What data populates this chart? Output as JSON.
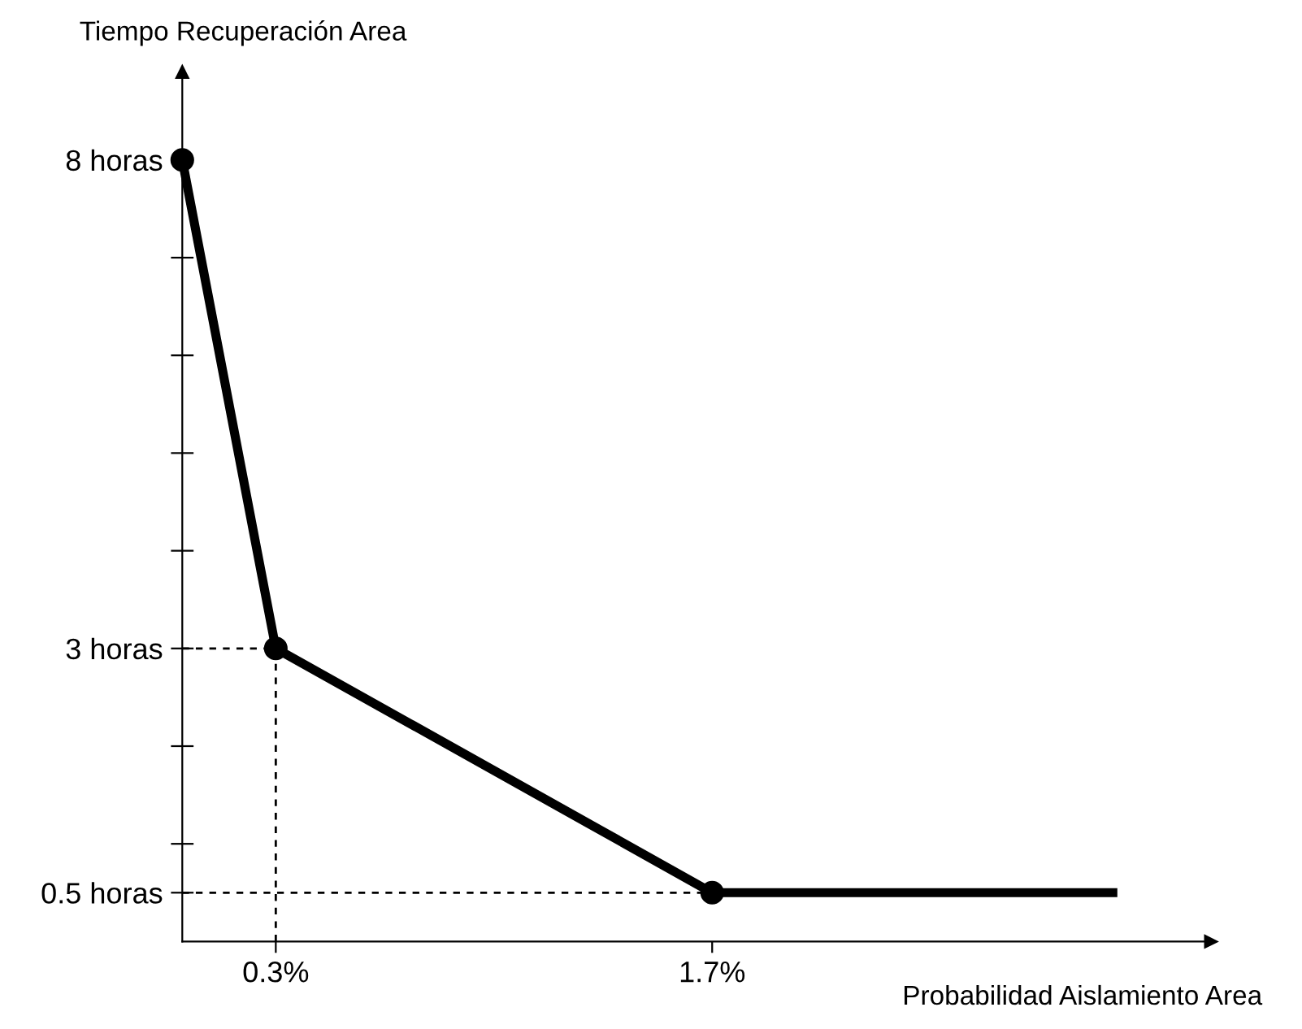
{
  "chart_data": {
    "type": "line",
    "xlabel": "Probabilidad Aislamiento Area",
    "ylabel": "Tiempo Recuperación Area",
    "series": [
      {
        "color": "#000000",
        "x": [
          0,
          0.3,
          1.7,
          3.0
        ],
        "values": [
          8,
          3,
          0.5,
          0.5
        ],
        "marker": "none"
      },
      {
        "type": "scatter",
        "color": "#000000",
        "x": [
          0,
          0.3,
          1.7
        ],
        "values": [
          8,
          3,
          0.5
        ],
        "marker": "circle"
      }
    ],
    "xlim": [
      0,
      3.3
    ],
    "ylim": [
      0,
      8.9
    ],
    "xticks": [
      {
        "value": 0.3,
        "label": "0.3%"
      },
      {
        "value": 1.7,
        "label": "1.7%"
      }
    ],
    "yticks": [
      {
        "value": 0.5,
        "label": "0.5 horas"
      },
      {
        "value": 1,
        "label": null
      },
      {
        "value": 2,
        "label": null
      },
      {
        "value": 3,
        "label": "3 horas"
      },
      {
        "value": 4,
        "label": null
      },
      {
        "value": 5,
        "label": null
      },
      {
        "value": 6,
        "label": null
      },
      {
        "value": 7,
        "label": null
      },
      {
        "value": 8,
        "label": "8 horas"
      }
    ],
    "ref_lines": [
      {
        "axis": "x",
        "value": 0.3,
        "line_style": "dashed",
        "color": "#000000"
      },
      {
        "axis": "y",
        "value": 3,
        "line_style": "dashed",
        "color": "#000000"
      },
      {
        "axis": "y",
        "value": 0.5,
        "line_style": "dashed",
        "color": "#000000"
      }
    ],
    "grid": false,
    "legend": false
  }
}
